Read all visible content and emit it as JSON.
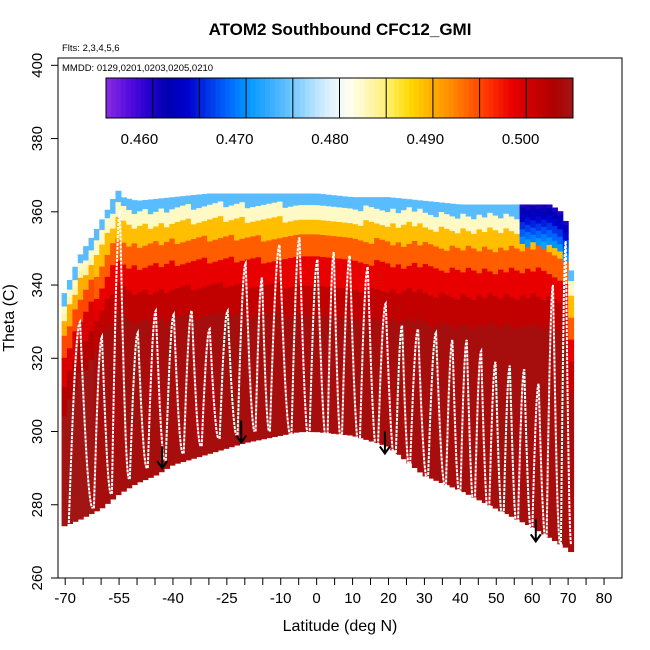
{
  "chart_data": {
    "type": "heatmap",
    "title": "ATOM2 Southbound CFC12_GMI",
    "notes": [
      "Flts: 2,3,4,5,6",
      "MMDD: 0129,0201,0203,0205,0210"
    ],
    "xlabel": "Latitude (deg N)",
    "ylabel": "Theta (C)",
    "xlim": [
      -72,
      85
    ],
    "ylim": [
      260,
      402
    ],
    "x_ticks": [
      -70,
      -65,
      -60,
      -55,
      -50,
      -45,
      -40,
      -35,
      -30,
      -25,
      -20,
      -15,
      -10,
      -5,
      0,
      5,
      10,
      15,
      20,
      25,
      30,
      35,
      40,
      45,
      50,
      55,
      60,
      65,
      70,
      75,
      80
    ],
    "x_tick_labels": [
      "-70",
      "-55",
      "-40",
      "-25",
      "-10",
      "0",
      "10",
      "20",
      "30",
      "40",
      "50",
      "60",
      "70",
      "80"
    ],
    "y_ticks": [
      260,
      280,
      300,
      320,
      340,
      360,
      380,
      400
    ],
    "y_tick_labels": [
      "260",
      "280",
      "300",
      "320",
      "340",
      "360",
      "380",
      "400"
    ],
    "colorbar": {
      "min": 0.4565,
      "max": 0.5055,
      "ticks": [
        0.46,
        0.47,
        0.48,
        0.49,
        0.5
      ],
      "tick_labels": [
        "0.460",
        "0.470",
        "0.480",
        "0.490",
        "0.500"
      ],
      "colors": [
        "#8a2be2",
        "#5a10e0",
        "#2a00d0",
        "#0000b0",
        "#0000cd",
        "#0033e6",
        "#0066ff",
        "#0099ff",
        "#33aaff",
        "#66c2ff",
        "#a6dcff",
        "#ddf2ff",
        "#ffffee",
        "#fff6b0",
        "#ffee60",
        "#ffd700",
        "#ffb000",
        "#ff8c00",
        "#ff5a00",
        "#ff2a00",
        "#e80000",
        "#cc0000",
        "#b00000",
        "#a11515"
      ]
    },
    "field": {
      "x_range": [
        -71,
        71
      ],
      "top": [
        [
          -71,
          336
        ],
        [
          -66,
          348
        ],
        [
          -62,
          354
        ],
        [
          -58,
          361
        ],
        [
          -56,
          365
        ],
        [
          -55,
          366
        ],
        [
          -54,
          364
        ],
        [
          -50,
          363
        ],
        [
          -40,
          364
        ],
        [
          -30,
          365
        ],
        [
          -20,
          365
        ],
        [
          -10,
          365
        ],
        [
          0,
          365
        ],
        [
          10,
          364
        ],
        [
          20,
          364
        ],
        [
          30,
          363
        ],
        [
          40,
          362
        ],
        [
          50,
          362
        ],
        [
          60,
          362
        ],
        [
          65,
          362
        ],
        [
          68,
          360
        ],
        [
          70,
          356
        ],
        [
          71,
          340
        ]
      ],
      "bottom": [
        [
          -71,
          274
        ],
        [
          -66,
          276
        ],
        [
          -60,
          279
        ],
        [
          -55,
          283
        ],
        [
          -50,
          286
        ],
        [
          -45,
          288
        ],
        [
          -40,
          291
        ],
        [
          -30,
          294
        ],
        [
          -20,
          297
        ],
        [
          -10,
          299
        ],
        [
          -5,
          300
        ],
        [
          0,
          300
        ],
        [
          10,
          299
        ],
        [
          20,
          296
        ],
        [
          25,
          292
        ],
        [
          30,
          288
        ],
        [
          40,
          284
        ],
        [
          50,
          279
        ],
        [
          60,
          274
        ],
        [
          65,
          271
        ],
        [
          70,
          268
        ],
        [
          71,
          267
        ]
      ]
    },
    "profiles_description_omitted": true,
    "profile_lat": [
      -69,
      -62,
      -57,
      -52,
      -47,
      -42,
      -37,
      -32,
      -27,
      -22,
      -17,
      -13,
      -7,
      -2,
      3,
      7,
      12,
      17,
      22,
      26,
      31,
      36,
      40,
      44,
      48,
      52,
      56,
      60,
      64,
      68
    ],
    "profile_top": [
      330,
      326,
      360,
      327,
      333,
      332,
      333,
      328,
      333,
      346,
      342,
      351,
      353,
      347,
      349,
      348,
      345,
      335,
      329,
      328,
      327,
      325,
      325,
      322,
      319,
      318,
      317,
      313,
      340,
      352
    ],
    "profile_bottom": [
      275,
      279,
      283,
      287,
      290,
      292,
      294,
      296,
      298,
      299,
      300,
      300,
      299,
      298,
      297,
      297,
      296,
      294,
      292,
      290,
      287,
      285,
      282,
      279,
      277,
      275,
      273,
      272,
      270,
      269
    ],
    "arrows": [
      [
        -43,
        296,
        290
      ],
      [
        -21,
        303,
        297
      ],
      [
        19,
        300,
        294
      ],
      [
        61,
        276,
        270
      ]
    ]
  }
}
